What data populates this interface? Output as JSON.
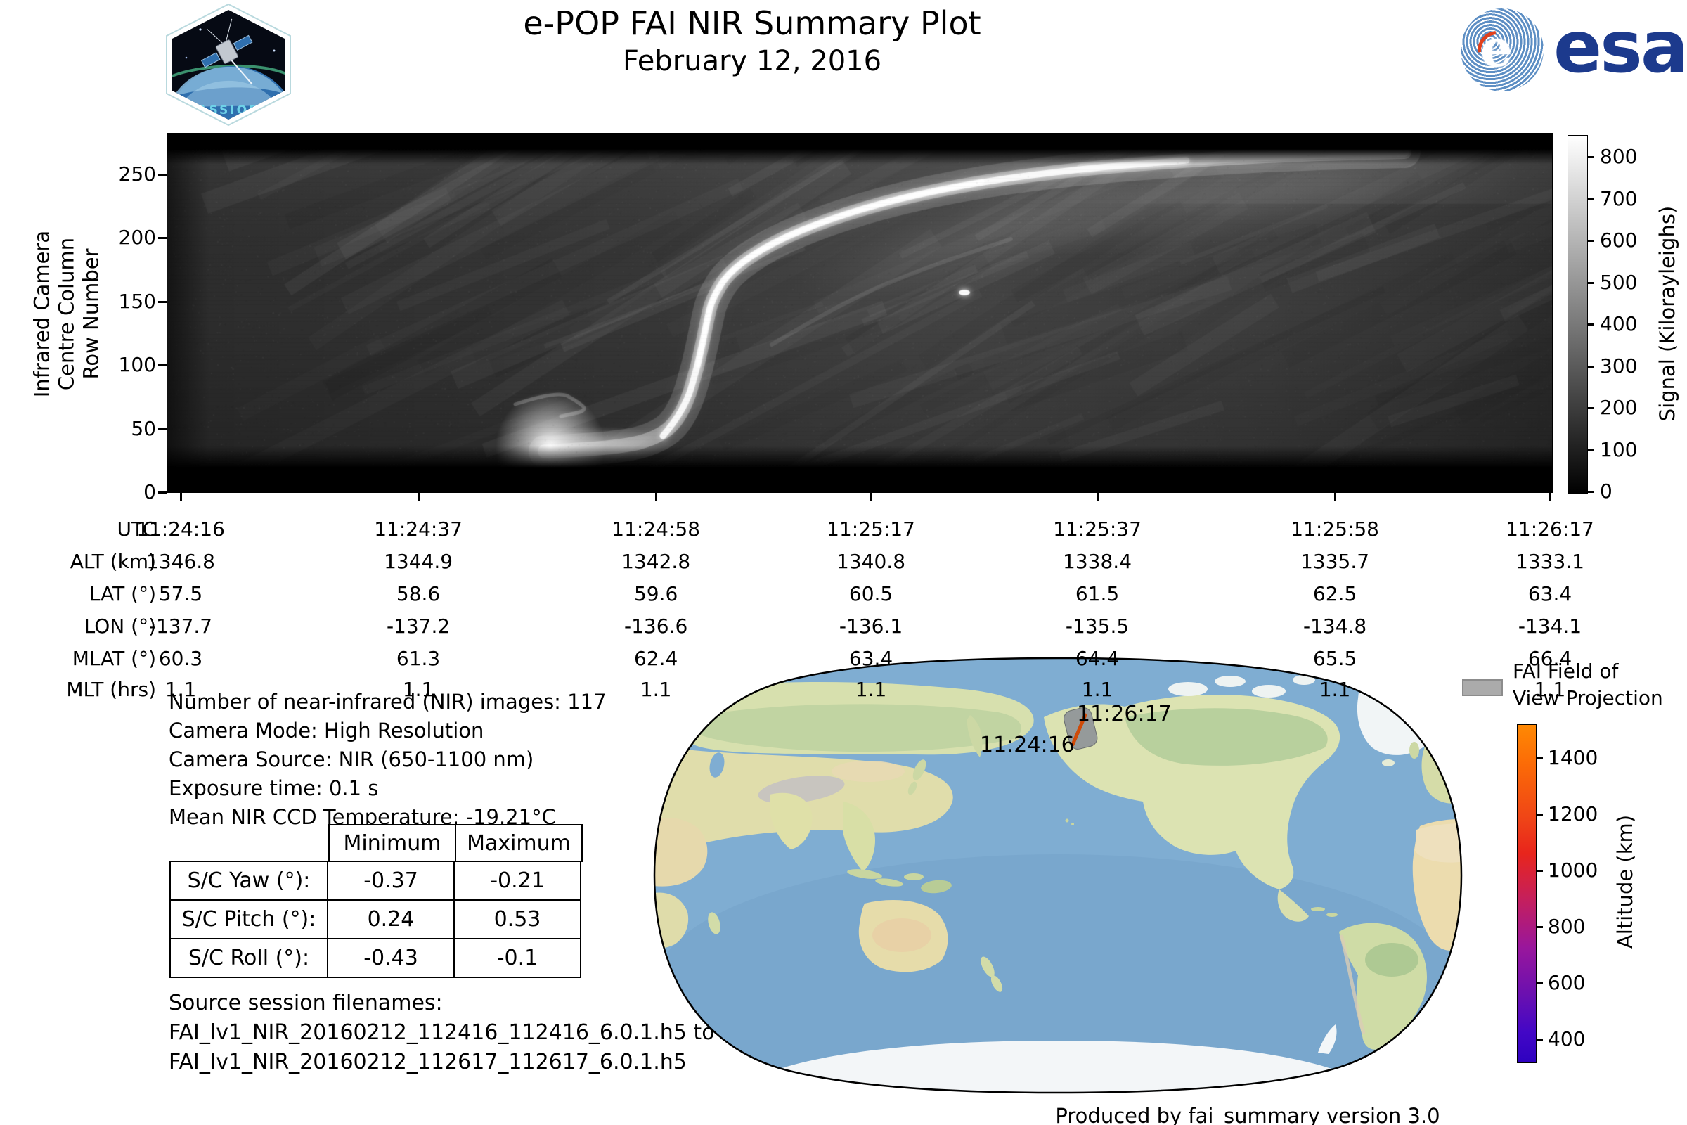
{
  "header": {
    "title": "e-POP FAI NIR Summary Plot",
    "subtitle": "February 12, 2016",
    "mission_patch_label": "CASSIOPE",
    "esa_logo_text": "esa"
  },
  "keogram": {
    "ylabel_lines": [
      "Infrared Camera",
      "Centre Column",
      "Row Number"
    ],
    "yticks": [
      0,
      50,
      100,
      150,
      200,
      250
    ],
    "colorbar": {
      "label": "Signal (Kilorayleighs)",
      "ticks": [
        0,
        100,
        200,
        300,
        400,
        500,
        600,
        700,
        800
      ]
    },
    "xaxis": {
      "row_labels": [
        "UTC",
        "ALT (km)",
        "LAT (°)",
        "LON (°)",
        "MLAT (°)",
        "MLT (hrs)"
      ],
      "columns": [
        {
          "utc": "11:24:16",
          "alt": "1346.8",
          "lat": "57.5",
          "lon": "-137.7",
          "mlat": "60.3",
          "mlt": "1.1"
        },
        {
          "utc": "11:24:37",
          "alt": "1344.9",
          "lat": "58.6",
          "lon": "-137.2",
          "mlat": "61.3",
          "mlt": "1.1"
        },
        {
          "utc": "11:24:58",
          "alt": "1342.8",
          "lat": "59.6",
          "lon": "-136.6",
          "mlat": "62.4",
          "mlt": "1.1"
        },
        {
          "utc": "11:25:17",
          "alt": "1340.8",
          "lat": "60.5",
          "lon": "-136.1",
          "mlat": "63.4",
          "mlt": "1.1"
        },
        {
          "utc": "11:25:37",
          "alt": "1338.4",
          "lat": "61.5",
          "lon": "-135.5",
          "mlat": "64.4",
          "mlt": "1.1"
        },
        {
          "utc": "11:25:58",
          "alt": "1335.7",
          "lat": "62.5",
          "lon": "-134.8",
          "mlat": "65.5",
          "mlt": "1.1"
        },
        {
          "utc": "11:26:17",
          "alt": "1333.1",
          "lat": "63.4",
          "lon": "-134.1",
          "mlat": "66.4",
          "mlt": "1.1"
        }
      ]
    }
  },
  "info": {
    "lines": [
      "Number of near-infrared (NIR) images: 117",
      "Camera Mode: High Resolution",
      "Camera Source: NIR (650-1100 nm)",
      "Exposure time: 0.1 s",
      "Mean NIR CCD Temperature: -19.21°C"
    ]
  },
  "attitude_table": {
    "col_headers": [
      "Minimum",
      "Maximum"
    ],
    "rows": [
      {
        "label": "S/C Yaw (°):",
        "min": "-0.37",
        "max": "-0.21"
      },
      {
        "label": "S/C Pitch (°):",
        "min": "0.24",
        "max": "0.53"
      },
      {
        "label": "S/C Roll (°):",
        "min": "-0.43",
        "max": "-0.1"
      }
    ]
  },
  "source": {
    "heading": "Source session filenames:",
    "lines": [
      "FAI_lv1_NIR_20160212_112416_112416_6.0.1.h5 to",
      "FAI_lv1_NIR_20160212_112617_112617_6.0.1.h5"
    ]
  },
  "map": {
    "track_start_label": "11:24:16",
    "track_end_label": "11:26:17",
    "legend": {
      "lines": [
        "FAI Field of",
        "View Projection"
      ],
      "swatch_color": "#ababab"
    },
    "alt_colorbar": {
      "label": "Altitude (km)",
      "ticks": [
        400,
        600,
        800,
        1000,
        1200,
        1400
      ]
    }
  },
  "footer": {
    "text": "Produced by fai_summary version 3.0"
  },
  "colors": {
    "track_orange": "#cf4a08",
    "fov_gray": "#8f9499",
    "esa_blue": "#1c3a8d",
    "ocean_blue": "#7fadd2"
  },
  "chart_data": [
    {
      "type": "heatmap",
      "title": "e-POP FAI NIR Summary Plot — February 12, 2016",
      "ylabel": "Infrared Camera Centre Column Row Number",
      "ylim": [
        0,
        283
      ],
      "y_ticks": [
        0,
        50,
        100,
        150,
        200,
        250
      ],
      "x_ticks_utc": [
        "11:24:16",
        "11:24:37",
        "11:24:58",
        "11:25:17",
        "11:25:37",
        "11:25:58",
        "11:26:17"
      ],
      "ephemeris_series": {
        "alt_km": [
          1346.8,
          1344.9,
          1342.8,
          1340.8,
          1338.4,
          1335.7,
          1333.1
        ],
        "lat_deg": [
          57.5,
          58.6,
          59.6,
          60.5,
          61.5,
          62.5,
          63.4
        ],
        "lon_deg": [
          -137.7,
          -137.2,
          -136.6,
          -136.1,
          -135.5,
          -134.8,
          -134.1
        ],
        "mlat_deg": [
          60.3,
          61.3,
          62.4,
          63.4,
          64.4,
          65.5,
          66.4
        ],
        "mlt_hrs": [
          1.1,
          1.1,
          1.1,
          1.1,
          1.1,
          1.1,
          1.1
        ]
      },
      "colorbar": {
        "label": "Signal (Kilorayleighs)",
        "ticks": [
          0,
          100,
          200,
          300,
          400,
          500,
          600,
          700,
          800
        ],
        "colormap": "grayscale"
      },
      "grid": false,
      "description": "Grayscale NIR keogram: a bright auroral arc rises from the bottom (~11:24:45, row 0-40) steeply up and to the right, passing row ~150 near 11:25:05 and flattening near row ~250 by 11:25:35, with diffuse glow continuing toward the top-right; black saturated bands along the top and bottom edges; an isolated bright star point near 11:25:25 at row ~155."
    },
    {
      "type": "map",
      "projection": "global world map, Pacific-centred, rounded (Robinson-like) outline",
      "ground_track": {
        "start_utc": "11:24:16",
        "end_utc": "11:26:17",
        "location": "over Alaska/Yukon (~57-63°N, ~-138 to -134°E)",
        "track_color": "#cf4a08",
        "fov_patch_color": "#8f9499"
      },
      "legend": "FAI Field of View Projection",
      "colorbar": {
        "label": "Altitude (km)",
        "ticks": [
          400,
          600,
          800,
          1000,
          1200,
          1400
        ],
        "range": [
          320,
          1520
        ],
        "colormap": "blue-purple-magenta-red-orange"
      }
    }
  ]
}
